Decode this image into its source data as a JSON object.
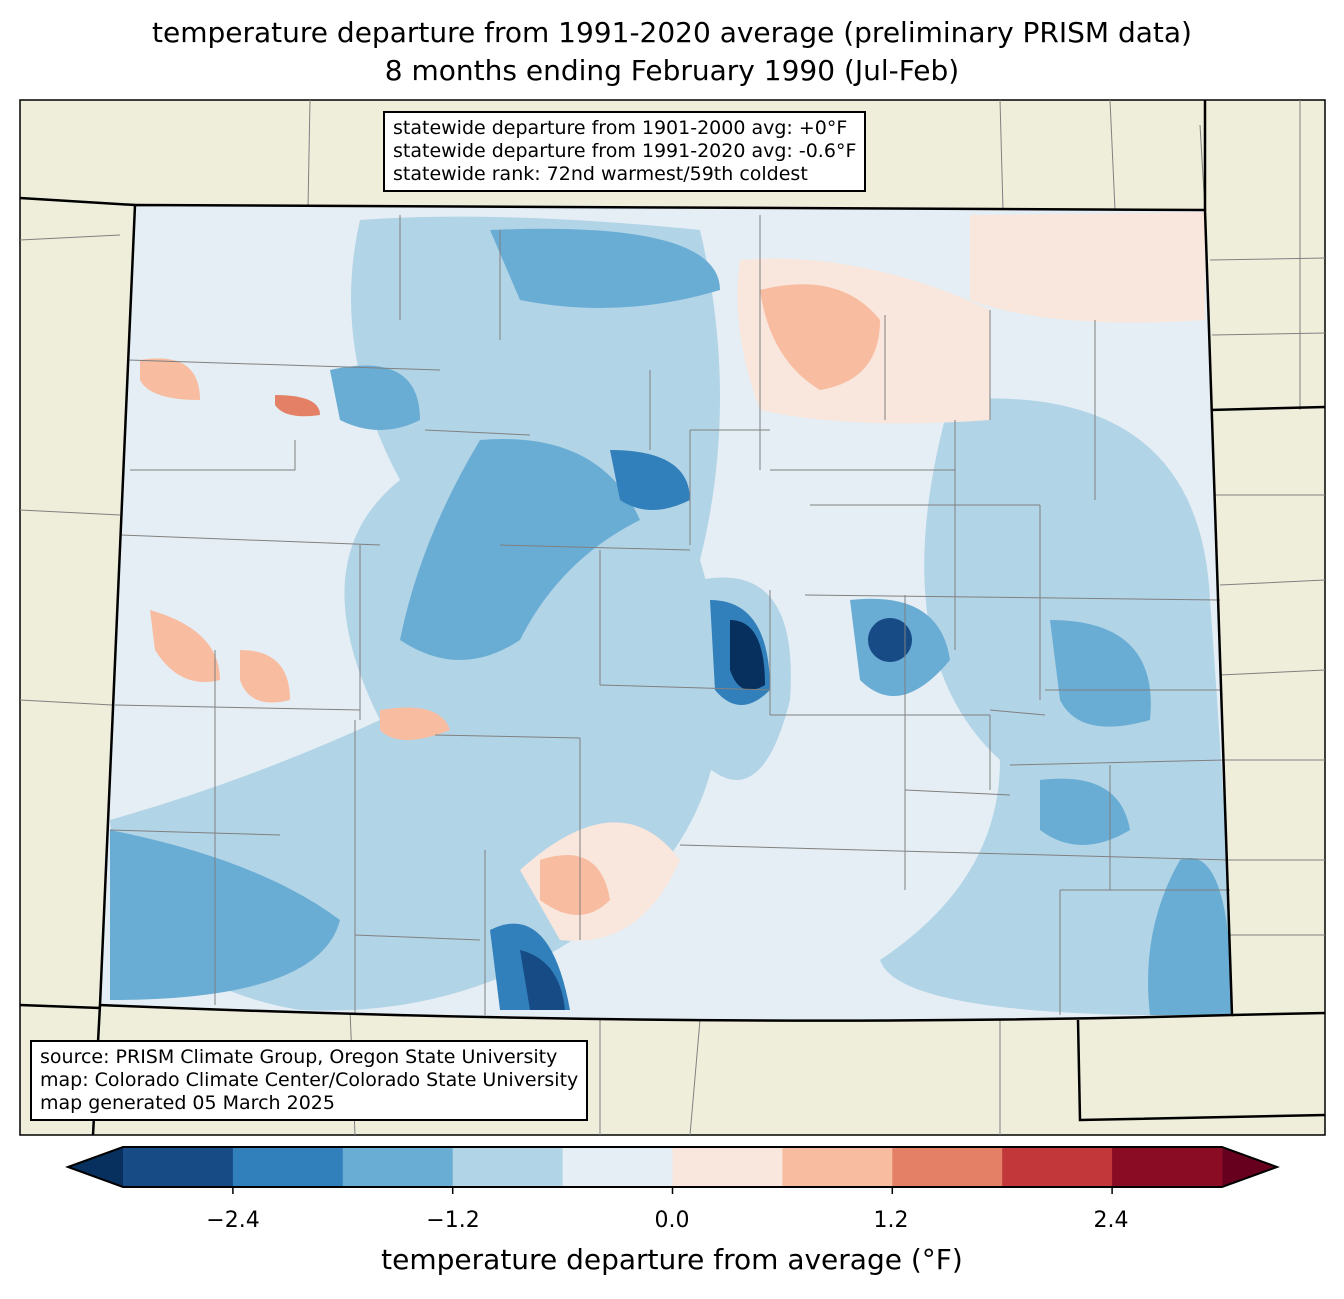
{
  "title": {
    "line1": "temperature departure from 1991-2020 average (preliminary PRISM data)",
    "line2": "8 months ending February 1990 (Jul-Feb)"
  },
  "stats": {
    "line1": "statewide departure from 1901-2000 avg: +0°F",
    "line2": "statewide departure from 1991-2020 avg: -0.6°F",
    "line3": "statewide rank: 72nd warmest/59th coldest"
  },
  "credits": {
    "line1": "source: PRISM Climate Group, Oregon State University",
    "line2": "map: Colorado Climate Center/Colorado State University",
    "line3": "map generated 05 March 2025"
  },
  "colorbar": {
    "label": "temperature departure from average (°F)",
    "ticks": [
      "−2.4",
      "−1.2",
      "0.0",
      "1.2",
      "2.4"
    ],
    "bounds": [
      -3.0,
      -2.4,
      -1.8,
      -1.2,
      -0.6,
      0.0,
      0.6,
      1.2,
      1.8,
      2.4,
      3.0
    ],
    "colors": [
      "#164b86",
      "#3280bb",
      "#6aadd4",
      "#b2d4e7",
      "#e5eef4",
      "#f9e6dc",
      "#f8bca0",
      "#e48066",
      "#c2383a",
      "#8a0b24"
    ],
    "under": "#08305f",
    "over": "#67001f"
  },
  "colors": {
    "land": "#efeedb",
    "border": "#000000",
    "county": "#808080"
  }
}
